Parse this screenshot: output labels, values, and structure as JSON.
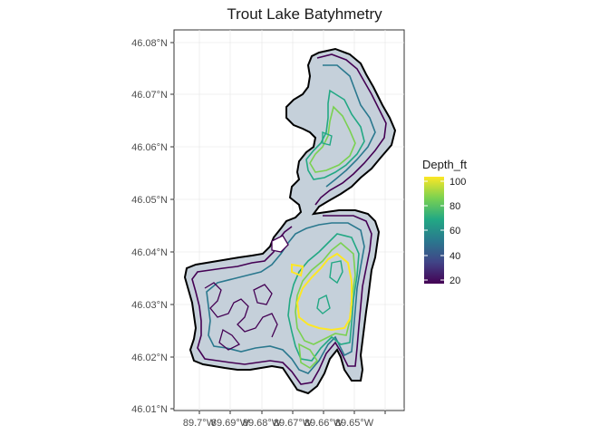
{
  "map": {
    "title": "Trout Lake Batyhmetry",
    "lon_ticks": [
      "89.7°W",
      "89.69°W",
      "89.68°W",
      "89.67°W",
      "89.66°W",
      "89.65°W"
    ],
    "lat_ticks": [
      "46.08°N",
      "46.07°N",
      "46.06°N",
      "46.05°N",
      "46.04°N",
      "46.03°N",
      "46.02°N",
      "46.01°N"
    ],
    "lake_fill": "#c5d0da",
    "shoreline_color": "#000000"
  },
  "legend": {
    "title": "Depth_ft",
    "labels": [
      "100",
      "80",
      "60",
      "40",
      "20"
    ],
    "colors": [
      "#fde725",
      "#7ad151",
      "#22a884",
      "#2a788e",
      "#414487",
      "#440154"
    ]
  }
}
